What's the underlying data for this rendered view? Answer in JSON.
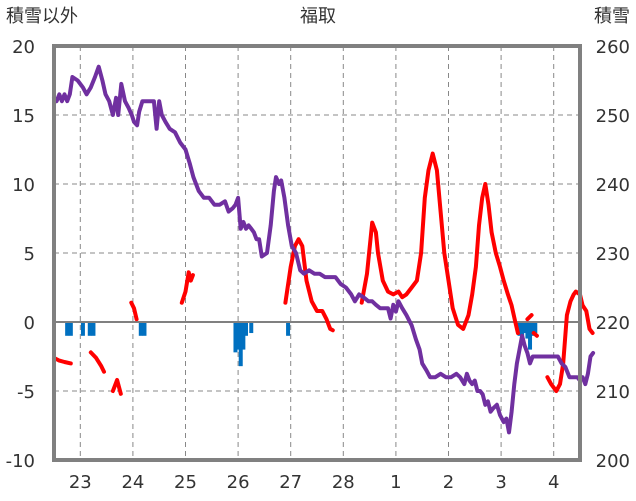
{
  "chart_data": {
    "type": "line",
    "title": "福取",
    "left_axis_title": "積雪以外",
    "right_axis_title": "積雪",
    "x_tick_labels": [
      "23",
      "24",
      "25",
      "26",
      "27",
      "28",
      "1",
      "2",
      "3",
      "4"
    ],
    "x_tick_positions": [
      0.5,
      1.5,
      2.5,
      3.5,
      4.5,
      5.5,
      6.5,
      7.5,
      8.5,
      9.5
    ],
    "xlim": [
      0,
      10
    ],
    "ylim_left": [
      -10,
      20
    ],
    "ylim_right": [
      200,
      260
    ],
    "y_ticks_left": [
      20,
      15,
      10,
      5,
      0,
      -5,
      -10
    ],
    "y_ticks_right": [
      260,
      250,
      240,
      230,
      220,
      210,
      200
    ],
    "y_tick_labels_left": [
      "20",
      "15",
      "10",
      "5",
      "0",
      "-5",
      "-10"
    ],
    "y_tick_labels_right": [
      "260",
      "250",
      "240",
      "230",
      "220",
      "210",
      "200"
    ],
    "grid": "dashed",
    "colors": {
      "temperature": "#ff0000",
      "snow_depth": "#7030a0",
      "precipitation": "#0070c0",
      "frame": "#808080"
    },
    "series": [
      {
        "role": "temperature",
        "axis": "left",
        "segments": [
          [
            [
              0.0,
              -2.6
            ],
            [
              0.1,
              -2.8
            ],
            [
              0.2,
              -2.9
            ],
            [
              0.32,
              -3.0
            ]
          ],
          [
            [
              0.7,
              -2.2
            ],
            [
              0.8,
              -2.6
            ],
            [
              0.9,
              -3.2
            ],
            [
              0.95,
              -3.6
            ]
          ],
          [
            [
              1.12,
              -5.0
            ],
            [
              1.2,
              -4.2
            ],
            [
              1.27,
              -5.2
            ]
          ],
          [
            [
              1.47,
              1.4
            ],
            [
              1.52,
              1.0
            ],
            [
              1.57,
              0.2
            ]
          ],
          [
            [
              2.43,
              1.4
            ],
            [
              2.5,
              2.2
            ],
            [
              2.56,
              3.6
            ],
            [
              2.6,
              3.0
            ],
            [
              2.64,
              3.4
            ]
          ],
          [
            [
              4.4,
              1.4
            ],
            [
              4.5,
              4.0
            ],
            [
              4.58,
              5.5
            ],
            [
              4.65,
              6.0
            ],
            [
              4.72,
              5.5
            ],
            [
              4.8,
              3.0
            ],
            [
              4.9,
              1.5
            ],
            [
              5.0,
              0.8
            ],
            [
              5.1,
              0.8
            ],
            [
              5.18,
              0.2
            ],
            [
              5.25,
              -0.5
            ],
            [
              5.3,
              -0.6
            ]
          ],
          [
            [
              5.85,
              1.4
            ],
            [
              5.95,
              3.5
            ],
            [
              6.05,
              7.2
            ],
            [
              6.12,
              6.5
            ],
            [
              6.16,
              5.0
            ],
            [
              6.25,
              3.0
            ],
            [
              6.35,
              2.2
            ],
            [
              6.45,
              2.0
            ],
            [
              6.55,
              2.2
            ],
            [
              6.62,
              1.8
            ],
            [
              6.7,
              2.0
            ],
            [
              6.8,
              2.5
            ],
            [
              6.9,
              3.0
            ],
            [
              6.98,
              5.0
            ],
            [
              7.05,
              9.0
            ],
            [
              7.12,
              11.0
            ],
            [
              7.2,
              12.2
            ],
            [
              7.28,
              11.0
            ],
            [
              7.35,
              8.0
            ],
            [
              7.42,
              5.0
            ],
            [
              7.5,
              3.0
            ],
            [
              7.58,
              1.0
            ],
            [
              7.68,
              -0.2
            ],
            [
              7.78,
              -0.5
            ],
            [
              7.88,
              0.5
            ],
            [
              7.95,
              2.0
            ],
            [
              8.02,
              4.0
            ],
            [
              8.08,
              7.0
            ],
            [
              8.14,
              9.0
            ],
            [
              8.2,
              10.0
            ],
            [
              8.26,
              8.5
            ],
            [
              8.32,
              6.5
            ],
            [
              8.4,
              5.0
            ],
            [
              8.48,
              4.0
            ],
            [
              8.55,
              3.0
            ],
            [
              8.63,
              2.0
            ],
            [
              8.7,
              1.2
            ],
            [
              8.77,
              0.0
            ],
            [
              8.82,
              -0.8
            ]
          ],
          [
            [
              9.0,
              0.2
            ],
            [
              9.08,
              0.5
            ]
          ],
          [
            [
              9.12,
              -0.8
            ],
            [
              9.18,
              -1.0
            ]
          ],
          [
            [
              9.38,
              -4.0
            ],
            [
              9.45,
              -4.5
            ],
            [
              9.55,
              -5.0
            ],
            [
              9.62,
              -4.5
            ],
            [
              9.68,
              -3.0
            ],
            [
              9.75,
              0.5
            ],
            [
              9.82,
              1.5
            ],
            [
              9.88,
              2.0
            ],
            [
              9.92,
              2.2
            ],
            [
              10.0,
              2.0
            ],
            [
              10.05,
              1.2
            ],
            [
              10.12,
              0.8
            ],
            [
              10.18,
              -0.5
            ],
            [
              10.24,
              -0.8
            ]
          ]
        ]
      },
      {
        "role": "snow_depth",
        "axis": "right",
        "segments": [
          [
            [
              0.0,
              252.5
            ],
            [
              0.05,
              252.0
            ],
            [
              0.1,
              253.0
            ],
            [
              0.15,
              252.0
            ],
            [
              0.2,
              253.0
            ],
            [
              0.25,
              252.0
            ],
            [
              0.3,
              253.0
            ],
            [
              0.35,
              255.5
            ],
            [
              0.45,
              255.0
            ],
            [
              0.55,
              254.0
            ],
            [
              0.62,
              253.0
            ],
            [
              0.7,
              254.0
            ],
            [
              0.78,
              255.5
            ],
            [
              0.85,
              257.0
            ],
            [
              0.92,
              255.0
            ],
            [
              0.98,
              253.0
            ],
            [
              1.05,
              252.0
            ],
            [
              1.12,
              250.0
            ],
            [
              1.18,
              252.5
            ],
            [
              1.22,
              250.0
            ],
            [
              1.28,
              254.5
            ],
            [
              1.35,
              252.0
            ],
            [
              1.42,
              251.0
            ],
            [
              1.48,
              250.0
            ],
            [
              1.52,
              249.0
            ],
            [
              1.58,
              248.5
            ],
            [
              1.62,
              250.5
            ],
            [
              1.68,
              252.0
            ],
            [
              1.8,
              252.0
            ],
            [
              1.9,
              252.0
            ],
            [
              1.95,
              248.0
            ],
            [
              2.0,
              252.0
            ],
            [
              2.05,
              250.0
            ],
            [
              2.12,
              249.0
            ],
            [
              2.2,
              248.0
            ],
            [
              2.3,
              247.5
            ],
            [
              2.4,
              246.0
            ],
            [
              2.5,
              245.0
            ],
            [
              2.58,
              243.0
            ],
            [
              2.65,
              241.0
            ],
            [
              2.75,
              239.0
            ],
            [
              2.85,
              238.0
            ],
            [
              2.95,
              238.0
            ],
            [
              3.05,
              237.0
            ],
            [
              3.15,
              237.0
            ],
            [
              3.25,
              237.5
            ],
            [
              3.32,
              236.0
            ],
            [
              3.4,
              236.5
            ],
            [
              3.45,
              237.0
            ],
            [
              3.5,
              238.0
            ],
            [
              3.55,
              233.5
            ],
            [
              3.6,
              234.5
            ],
            [
              3.65,
              233.5
            ],
            [
              3.7,
              234.0
            ],
            [
              3.75,
              233.5
            ],
            [
              3.8,
              233.0
            ],
            [
              3.85,
              232.0
            ],
            [
              3.9,
              232.0
            ],
            [
              3.95,
              229.5
            ],
            [
              4.05,
              230.0
            ],
            [
              4.12,
              234.0
            ],
            [
              4.18,
              239.0
            ],
            [
              4.22,
              241.0
            ],
            [
              4.28,
              240.0
            ],
            [
              4.32,
              240.5
            ],
            [
              4.38,
              238.0
            ],
            [
              4.45,
              234.0
            ],
            [
              4.52,
              231.0
            ],
            [
              4.6,
              230.0
            ],
            [
              4.68,
              227.5
            ],
            [
              4.75,
              227.0
            ],
            [
              4.85,
              227.5
            ],
            [
              4.95,
              227.0
            ],
            [
              5.05,
              227.0
            ],
            [
              5.15,
              226.5
            ],
            [
              5.25,
              226.5
            ],
            [
              5.35,
              226.5
            ],
            [
              5.45,
              225.5
            ],
            [
              5.55,
              225.0
            ],
            [
              5.65,
              224.0
            ],
            [
              5.72,
              223.0
            ],
            [
              5.8,
              224.0
            ],
            [
              5.9,
              223.5
            ],
            [
              5.98,
              223.0
            ],
            [
              6.05,
              223.0
            ],
            [
              6.12,
              222.5
            ],
            [
              6.2,
              222.0
            ],
            [
              6.28,
              222.0
            ],
            [
              6.35,
              222.0
            ],
            [
              6.4,
              220.5
            ],
            [
              6.45,
              222.5
            ],
            [
              6.5,
              221.5
            ],
            [
              6.55,
              223.0
            ],
            [
              6.62,
              222.0
            ],
            [
              6.7,
              221.0
            ],
            [
              6.8,
              219.5
            ],
            [
              6.88,
              217.5
            ],
            [
              6.95,
              216.0
            ],
            [
              7.0,
              214.0
            ],
            [
              7.08,
              213.0
            ],
            [
              7.15,
              212.0
            ],
            [
              7.25,
              212.0
            ],
            [
              7.35,
              212.5
            ],
            [
              7.45,
              212.0
            ],
            [
              7.55,
              212.0
            ],
            [
              7.65,
              212.5
            ],
            [
              7.72,
              212.0
            ],
            [
              7.8,
              211.0
            ],
            [
              7.85,
              212.5
            ],
            [
              7.9,
              211.5
            ],
            [
              7.95,
              211.0
            ],
            [
              8.0,
              211.5
            ],
            [
              8.05,
              210.0
            ],
            [
              8.1,
              210.0
            ],
            [
              8.15,
              209.5
            ],
            [
              8.2,
              208.0
            ],
            [
              8.25,
              208.5
            ],
            [
              8.3,
              207.0
            ],
            [
              8.35,
              207.5
            ],
            [
              8.42,
              208.0
            ],
            [
              8.48,
              206.5
            ],
            [
              8.55,
              205.5
            ],
            [
              8.6,
              206.0
            ],
            [
              8.65,
              204.0
            ],
            [
              8.7,
              207.0
            ],
            [
              8.75,
              211.0
            ],
            [
              8.8,
              214.0
            ],
            [
              8.85,
              216.0
            ],
            [
              8.9,
              218.0
            ],
            [
              8.95,
              216.5
            ],
            [
              9.0,
              215.5
            ],
            [
              9.05,
              214.0
            ],
            [
              9.1,
              215.0
            ],
            [
              9.2,
              215.0
            ],
            [
              9.3,
              215.0
            ],
            [
              9.4,
              215.0
            ],
            [
              9.5,
              215.0
            ],
            [
              9.58,
              215.0
            ],
            [
              9.65,
              214.0
            ],
            [
              9.72,
              213.5
            ],
            [
              9.8,
              212.0
            ],
            [
              9.88,
              212.0
            ],
            [
              9.95,
              212.0
            ],
            [
              10.0,
              211.5
            ],
            [
              10.05,
              212.0
            ],
            [
              10.1,
              211.0
            ],
            [
              10.15,
              212.5
            ],
            [
              10.2,
              215.0
            ],
            [
              10.25,
              215.5
            ]
          ]
        ]
      },
      {
        "role": "precipitation",
        "axis": "left",
        "bars": [
          [
            0.25,
            -1.0
          ],
          [
            0.32,
            -1.0
          ],
          [
            0.55,
            -1.0
          ],
          [
            0.68,
            -1.0
          ],
          [
            0.75,
            -1.0
          ],
          [
            1.65,
            -1.0
          ],
          [
            1.72,
            -1.0
          ],
          [
            3.45,
            -2.2
          ],
          [
            3.5,
            -2.0
          ],
          [
            3.55,
            -3.2
          ],
          [
            3.6,
            -2.0
          ],
          [
            3.65,
            -1.0
          ],
          [
            3.75,
            -0.8
          ],
          [
            4.45,
            -1.0
          ],
          [
            8.85,
            -1.0
          ],
          [
            8.9,
            -1.2
          ],
          [
            8.95,
            -0.8
          ],
          [
            9.0,
            -1.2
          ],
          [
            9.05,
            -2.0
          ],
          [
            9.1,
            -1.0
          ],
          [
            9.15,
            -0.8
          ]
        ]
      }
    ]
  }
}
